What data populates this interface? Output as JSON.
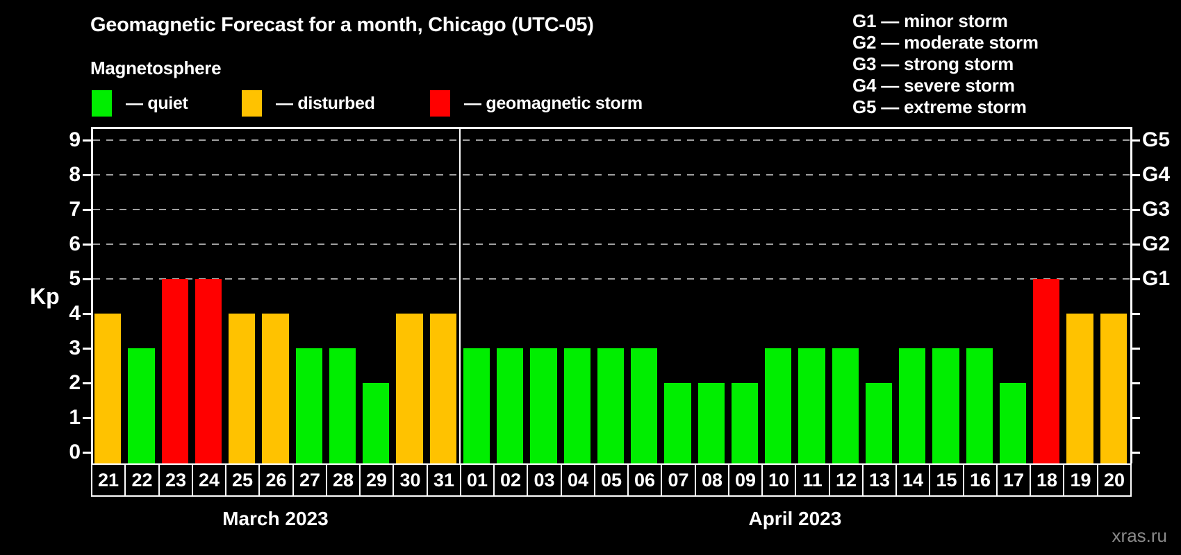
{
  "header": {
    "title": "Geomagnetic Forecast for a month, Chicago (UTC-05)",
    "subtitle": "Magnetosphere"
  },
  "magnetosphere_legend": [
    {
      "key": "quiet",
      "label": "— quiet"
    },
    {
      "key": "disturbed",
      "label": "— disturbed"
    },
    {
      "key": "storm",
      "label": "— geomagnetic storm"
    }
  ],
  "g_scale_legend": [
    "G1 — minor storm",
    "G2 — moderate storm",
    "G3 — strong storm",
    "G4 — severe storm",
    "G5 — extreme storm"
  ],
  "watermark": "xras.ru",
  "colors": {
    "background": "#000000",
    "quiet": "#00EE00",
    "disturbed": "#FFC200",
    "storm": "#FF0000",
    "axis": "#FFFFFF",
    "grid": "#A0A0A0",
    "watermark": "#8A8A8A"
  },
  "chart_data": {
    "type": "bar",
    "title": "Geomagnetic Forecast for a month, Chicago (UTC-05)",
    "xlabel": "",
    "ylabel": "Kp",
    "ylim": [
      0,
      9
    ],
    "yticks": [
      0,
      1,
      2,
      3,
      4,
      5,
      6,
      7,
      8,
      9
    ],
    "gridlines_at": [
      5,
      6,
      7,
      8,
      9
    ],
    "grid": "dashed horizontal, levels 5-9 only",
    "legend_position": "top-left (bar states) and top-right (G scale)",
    "right_axis_labels": [
      {
        "kp": 5,
        "text": "G1"
      },
      {
        "kp": 6,
        "text": "G2"
      },
      {
        "kp": 7,
        "text": "G3"
      },
      {
        "kp": 8,
        "text": "G4"
      },
      {
        "kp": 9,
        "text": "G5"
      }
    ],
    "months": [
      {
        "label": "March 2023",
        "days": [
          {
            "day": "21",
            "kp": 4,
            "state": "disturbed"
          },
          {
            "day": "22",
            "kp": 3,
            "state": "quiet"
          },
          {
            "day": "23",
            "kp": 5,
            "state": "storm"
          },
          {
            "day": "24",
            "kp": 5,
            "state": "storm"
          },
          {
            "day": "25",
            "kp": 4,
            "state": "disturbed"
          },
          {
            "day": "26",
            "kp": 4,
            "state": "disturbed"
          },
          {
            "day": "27",
            "kp": 3,
            "state": "quiet"
          },
          {
            "day": "28",
            "kp": 3,
            "state": "quiet"
          },
          {
            "day": "29",
            "kp": 2,
            "state": "quiet"
          },
          {
            "day": "30",
            "kp": 4,
            "state": "disturbed"
          },
          {
            "day": "31",
            "kp": 4,
            "state": "disturbed"
          }
        ]
      },
      {
        "label": "April 2023",
        "days": [
          {
            "day": "01",
            "kp": 3,
            "state": "quiet"
          },
          {
            "day": "02",
            "kp": 3,
            "state": "quiet"
          },
          {
            "day": "03",
            "kp": 3,
            "state": "quiet"
          },
          {
            "day": "04",
            "kp": 3,
            "state": "quiet"
          },
          {
            "day": "05",
            "kp": 3,
            "state": "quiet"
          },
          {
            "day": "06",
            "kp": 3,
            "state": "quiet"
          },
          {
            "day": "07",
            "kp": 2,
            "state": "quiet"
          },
          {
            "day": "08",
            "kp": 2,
            "state": "quiet"
          },
          {
            "day": "09",
            "kp": 2,
            "state": "quiet"
          },
          {
            "day": "10",
            "kp": 3,
            "state": "quiet"
          },
          {
            "day": "11",
            "kp": 3,
            "state": "quiet"
          },
          {
            "day": "12",
            "kp": 3,
            "state": "quiet"
          },
          {
            "day": "13",
            "kp": 2,
            "state": "quiet"
          },
          {
            "day": "14",
            "kp": 3,
            "state": "quiet"
          },
          {
            "day": "15",
            "kp": 3,
            "state": "quiet"
          },
          {
            "day": "16",
            "kp": 3,
            "state": "quiet"
          },
          {
            "day": "17",
            "kp": 2,
            "state": "quiet"
          },
          {
            "day": "18",
            "kp": 5,
            "state": "storm"
          },
          {
            "day": "19",
            "kp": 4,
            "state": "disturbed"
          },
          {
            "day": "20",
            "kp": 4,
            "state": "disturbed"
          }
        ]
      }
    ]
  }
}
